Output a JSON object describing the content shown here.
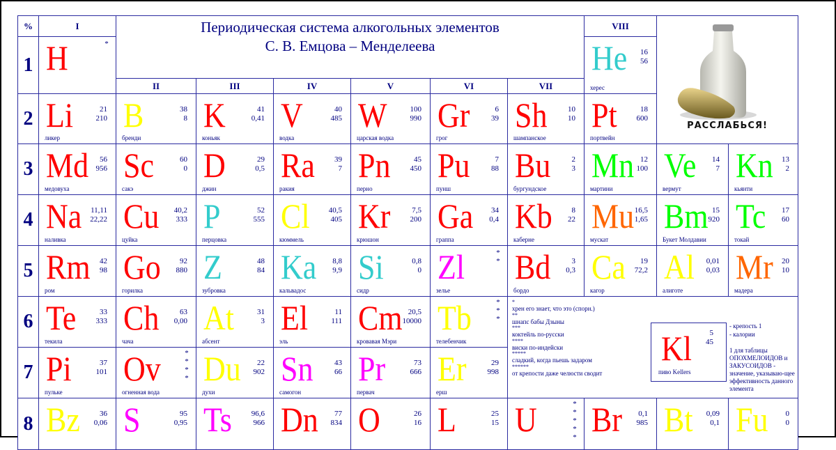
{
  "title": {
    "line1": "Периодическая система алкогольных элементов",
    "line2": "С. В. Емцова – Менделеева"
  },
  "header": {
    "percent": "%",
    "groups": [
      "I",
      "II",
      "III",
      "IV",
      "V",
      "VI",
      "VII",
      "VIII"
    ]
  },
  "periods": [
    "1",
    "2",
    "3",
    "4",
    "5",
    "6",
    "7",
    "8"
  ],
  "picture": {
    "caption": "РАССЛАБЬСЯ!",
    "icon": "milk-bottle-and-pickle"
  },
  "colors": {
    "red": "#ff0000",
    "yellow": "#ffff00",
    "cyan": "#33cccc",
    "magenta": "#ff00ff",
    "green": "#00ff00",
    "orange": "#ff6600",
    "line": "#2a2aa0",
    "text": "#000080"
  },
  "elements": {
    "H": {
      "symbol": "H",
      "stars": "*",
      "color": "red"
    },
    "He": {
      "symbol": "He",
      "n1": "16",
      "n2": "56",
      "name": "херес",
      "color": "cyan"
    },
    "row2": [
      {
        "symbol": "Li",
        "n1": "21",
        "n2": "210",
        "name": "ликер",
        "color": "red"
      },
      {
        "symbol": "B",
        "n1": "38",
        "n2": "8",
        "name": "бренди",
        "color": "yellow"
      },
      {
        "symbol": "K",
        "n1": "41",
        "n2": "0,41",
        "name": "коньяк",
        "color": "red"
      },
      {
        "symbol": "V",
        "n1": "40",
        "n2": "485",
        "name": "водка",
        "color": "red"
      },
      {
        "symbol": "W",
        "n1": "100",
        "n2": "990",
        "name": "царская водка",
        "color": "red"
      },
      {
        "symbol": "Gr",
        "n1": "6",
        "n2": "39",
        "name": "грог",
        "color": "red"
      },
      {
        "symbol": "Sh",
        "n1": "10",
        "n2": "10",
        "name": "шампанское",
        "color": "red"
      },
      {
        "symbol": "Pt",
        "n1": "18",
        "n2": "600",
        "name": "портвейн",
        "color": "red"
      }
    ],
    "row3": [
      {
        "symbol": "Md",
        "n1": "56",
        "n2": "956",
        "name": "медовуха",
        "color": "red"
      },
      {
        "symbol": "Sc",
        "n1": "60",
        "n2": "0",
        "name": "сакэ",
        "color": "red"
      },
      {
        "symbol": "D",
        "n1": "29",
        "n2": "0,5",
        "name": "джин",
        "color": "red"
      },
      {
        "symbol": "Ra",
        "n1": "39",
        "n2": "7",
        "name": "ракия",
        "color": "red"
      },
      {
        "symbol": "Pn",
        "n1": "45",
        "n2": "450",
        "name": "перно",
        "color": "red"
      },
      {
        "symbol": "Pu",
        "n1": "7",
        "n2": "88",
        "name": "пунш",
        "color": "red"
      },
      {
        "symbol": "Bu",
        "n1": "2",
        "n2": "3",
        "name": "бургундское",
        "color": "red"
      },
      {
        "symbol": "Mn",
        "n1": "12",
        "n2": "100",
        "name": "мартини",
        "color": "green"
      },
      {
        "symbol": "Ve",
        "n1": "14",
        "n2": "7",
        "name": "вермут",
        "color": "green"
      },
      {
        "symbol": "Kn",
        "n1": "13",
        "n2": "2",
        "name": "кьянти",
        "color": "green"
      }
    ],
    "row4": [
      {
        "symbol": "Na",
        "n1": "11,11",
        "n2": "22,22",
        "name": "наливка",
        "color": "red"
      },
      {
        "symbol": "Cu",
        "n1": "40,2",
        "n2": "333",
        "name": "цуйка",
        "color": "red"
      },
      {
        "symbol": "P",
        "n1": "52",
        "n2": "555",
        "name": "перцовка",
        "color": "cyan"
      },
      {
        "symbol": "Cl",
        "n1": "40,5",
        "n2": "405",
        "name": "кюммель",
        "color": "yellow"
      },
      {
        "symbol": "Kr",
        "n1": "7,5",
        "n2": "200",
        "name": "крюшон",
        "color": "red"
      },
      {
        "symbol": "Ga",
        "n1": "34",
        "n2": "0,4",
        "name": "граппа",
        "color": "red"
      },
      {
        "symbol": "Kb",
        "n1": "8",
        "n2": "22",
        "name": "каберне",
        "color": "red"
      },
      {
        "symbol": "Mu",
        "n1": "16,5",
        "n2": "1,65",
        "name": "мускат",
        "color": "orange"
      },
      {
        "symbol": "Bm",
        "n1": "15",
        "n2": "920",
        "name": "Букет Молдавии",
        "color": "green"
      },
      {
        "symbol": "Tc",
        "n1": "17",
        "n2": "60",
        "name": "токай",
        "color": "green"
      }
    ],
    "row5": [
      {
        "symbol": "Rm",
        "n1": "42",
        "n2": "98",
        "name": "ром",
        "color": "red"
      },
      {
        "symbol": "Go",
        "n1": "92",
        "n2": "880",
        "name": "горилка",
        "color": "red"
      },
      {
        "symbol": "Z",
        "n1": "48",
        "n2": "84",
        "name": "зубровка",
        "color": "cyan"
      },
      {
        "symbol": "Ka",
        "n1": "8,8",
        "n2": "9,9",
        "name": "кальвадос",
        "color": "cyan"
      },
      {
        "symbol": "Si",
        "n1": "0,8",
        "n2": "0",
        "name": "сидр",
        "color": "cyan"
      },
      {
        "symbol": "Zl",
        "stars": "**",
        "name": "зелье",
        "color": "magenta"
      },
      {
        "symbol": "Bd",
        "n1": "3",
        "n2": "0,3",
        "name": "бордо",
        "color": "red"
      },
      {
        "symbol": "Ca",
        "n1": "19",
        "n2": "72,2",
        "name": "кагор",
        "color": "yellow"
      },
      {
        "symbol": "Al",
        "n1": "0,01",
        "n2": "0,03",
        "name": "алиготе",
        "color": "yellow"
      },
      {
        "symbol": "Mr",
        "n1": "20",
        "n2": "10",
        "name": "мадера",
        "color": "orange"
      }
    ],
    "row6": [
      {
        "symbol": "Te",
        "n1": "33",
        "n2": "333",
        "name": "текила",
        "color": "red"
      },
      {
        "symbol": "Ch",
        "n1": "63",
        "n2": "0,00",
        "name": "чача",
        "color": "red"
      },
      {
        "symbol": "At",
        "n1": "31",
        "n2": "3",
        "name": "абсент",
        "color": "yellow"
      },
      {
        "symbol": "El",
        "n1": "11",
        "n2": "111",
        "name": "эль",
        "color": "red"
      },
      {
        "symbol": "Cm",
        "n1": "20,5",
        "n2": "10000",
        "name": "кровавая Мэри",
        "color": "red"
      },
      {
        "symbol": "Tb",
        "stars": "***",
        "name": "телебенчик",
        "color": "yellow"
      }
    ],
    "row7": [
      {
        "symbol": "Pi",
        "n1": "37",
        "n2": "101",
        "name": "пульке",
        "color": "red"
      },
      {
        "symbol": "Ov",
        "stars": "****",
        "name": "огненная вода",
        "color": "red"
      },
      {
        "symbol": "Du",
        "n1": "22",
        "n2": "902",
        "name": "духи",
        "color": "yellow"
      },
      {
        "symbol": "Sn",
        "n1": "43",
        "n2": "66",
        "name": "самогон",
        "color": "magenta"
      },
      {
        "symbol": "Pr",
        "n1": "73",
        "n2": "666",
        "name": "первач",
        "color": "magenta"
      },
      {
        "symbol": "Er",
        "n1": "29",
        "n2": "998",
        "name": "ерш",
        "color": "yellow"
      }
    ],
    "row8": [
      {
        "symbol": "Bz",
        "n1": "36",
        "n2": "0,06",
        "color": "yellow"
      },
      {
        "symbol": "S",
        "n1": "95",
        "n2": "0,95",
        "color": "magenta"
      },
      {
        "symbol": "Ts",
        "n1": "96,6",
        "n2": "966",
        "color": "magenta"
      },
      {
        "symbol": "Dn",
        "n1": "77",
        "n2": "834",
        "color": "red"
      },
      {
        "symbol": "O",
        "n1": "26",
        "n2": "16",
        "color": "red"
      },
      {
        "symbol": "L",
        "n1": "25",
        "n2": "15",
        "color": "red"
      },
      {
        "symbol": "U",
        "stars": "*****",
        "color": "red"
      },
      {
        "symbol": "Br",
        "n1": "0,1",
        "n2": "985",
        "color": "red"
      },
      {
        "symbol": "Bt",
        "n1": "0,09",
        "n2": "0,1",
        "color": "yellow"
      },
      {
        "symbol": "Fu",
        "n1": "0",
        "n2": "0",
        "color": "yellow"
      }
    ]
  },
  "legend": {
    "entries": [
      {
        "stars": "*",
        "text": "хрен его знает, что это (спорн.)"
      },
      {
        "stars": "**",
        "text": "шнапс бабы Дзыны"
      },
      {
        "stars": "***",
        "text": "коктейль по-русски"
      },
      {
        "stars": "****",
        "text": "виски по-индейски"
      },
      {
        "stars": "*****",
        "text": "сладкий, когда пьешь задаром"
      },
      {
        "stars": "******",
        "text": "от крепости даже челюсти сводит"
      }
    ],
    "sample": {
      "symbol": "Kl",
      "n1": "5",
      "n2": "45",
      "name": "пиво Kellers",
      "color": "red"
    },
    "notes": [
      "- крепость 1",
      "-  калории",
      "1 для таблицы ОПОХМЕЛОИДОВ и ЗАКУСОИДОВ - значение, указываю-щее эффективность данного элемента"
    ]
  }
}
